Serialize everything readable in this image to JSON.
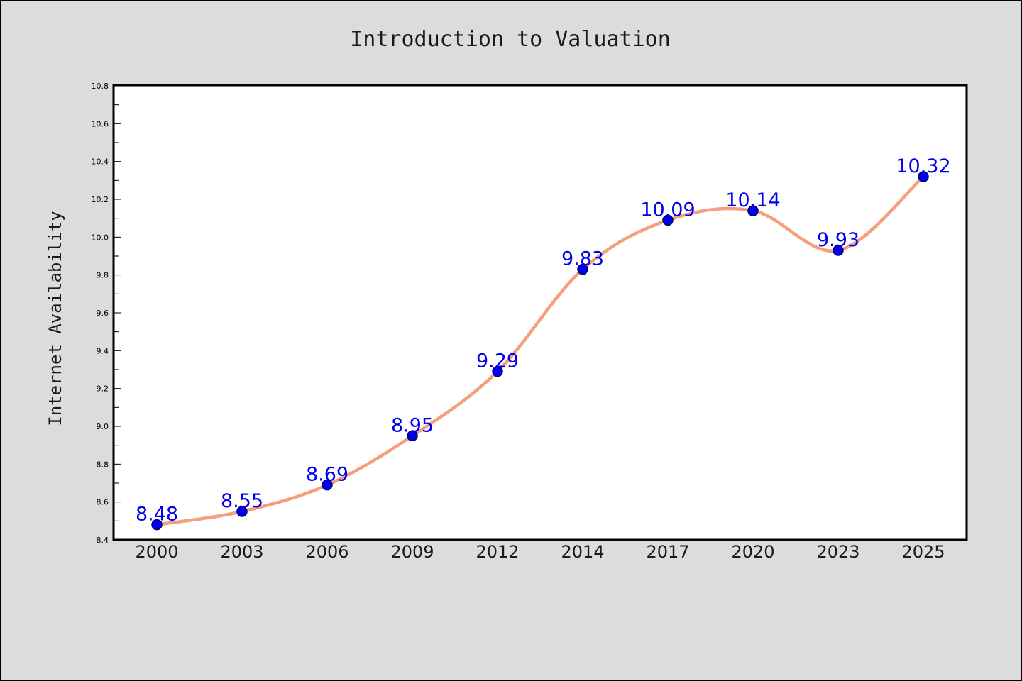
{
  "chart_data": {
    "type": "line",
    "title": "Introduction to Valuation",
    "xlabel": "",
    "ylabel": "Internet Availability",
    "categories": [
      "2000",
      "2003",
      "2006",
      "2009",
      "2012",
      "2014",
      "2017",
      "2020",
      "2023",
      "2025"
    ],
    "series": [
      {
        "values": [
          8.48,
          8.55,
          8.69,
          8.95,
          9.29,
          9.83,
          10.09,
          10.14,
          9.93,
          10.32
        ]
      }
    ],
    "data_labels": [
      "8.48",
      "8.55",
      "8.69",
      "8.95",
      "9.29",
      "9.83",
      "10.09",
      "10.14",
      "9.93",
      "10.32"
    ],
    "ylim": [
      8.4,
      10.8
    ],
    "y_ticks": [
      "8.4",
      "8.6",
      "8.8",
      "9.0",
      "9.2",
      "9.4",
      "9.6",
      "9.8",
      "10.0",
      "10.2",
      "10.4",
      "10.6",
      "10.8"
    ],
    "grid": false,
    "legend": "none",
    "colors": {
      "line": "#f4a07e",
      "marker": "#0000ee",
      "marker_edge": "#000066",
      "data_label": "#0000ee",
      "background": "#dcdcdc",
      "plot_background": "#ffffff"
    }
  }
}
